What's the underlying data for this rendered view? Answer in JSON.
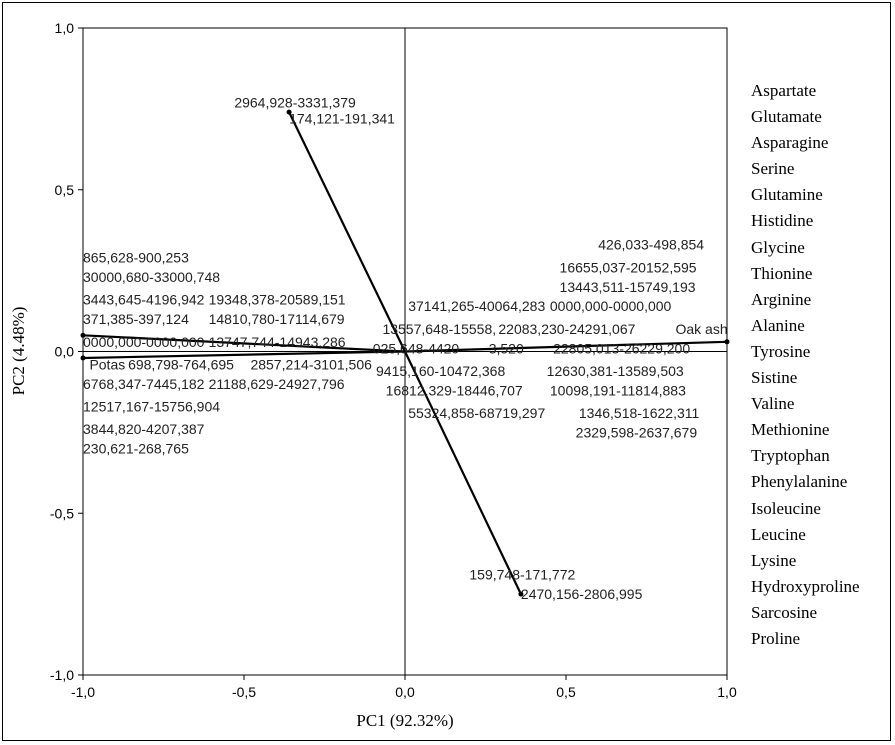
{
  "chart_data": {
    "type": "scatter",
    "xlabel": "PC1 (92.32%)",
    "ylabel": "PC2 (4.48%)",
    "xlim": [
      -1.0,
      1.0
    ],
    "ylim": [
      -1.0,
      1.0
    ],
    "x_ticks": [
      "-1,0",
      "-0,5",
      "0,0",
      "0,5",
      "1,0"
    ],
    "y_ticks": [
      "1,0",
      "0,5",
      "0,0",
      "-0,5",
      "-1,0"
    ],
    "reference_lines": "x = 0 and y = 0",
    "grid": false,
    "legend_position": "right",
    "legend_items": [
      "Aspartate",
      "Glutamate",
      "Asparagine",
      "Serine",
      "Glutamine",
      "Histidine",
      "Glycine",
      "Thionine",
      "Arginine",
      "Alanine",
      "Tyrosine",
      "Sistine",
      "Valine",
      "Methionine",
      "Tryptophan",
      "Phenylalanine",
      "Isoleucine",
      "Leucine",
      "Lysine",
      "Hydroxyproline",
      "Sarcosine",
      "Proline"
    ],
    "vectors": [
      {
        "x": -0.36,
        "y": 0.74
      },
      {
        "x": 0.36,
        "y": -0.75
      },
      {
        "x": 1.0,
        "y": 0.03
      },
      {
        "x": -1.0,
        "y": 0.05
      },
      {
        "x": -1.0,
        "y": -0.02
      }
    ],
    "labels": [
      {
        "text": "2964,928-3331,379",
        "x": -0.53,
        "y": 0.77
      },
      {
        "text": "174,121-191,341",
        "x": -0.36,
        "y": 0.72
      },
      {
        "text": "865,628-900,253",
        "x": -1.0,
        "y": 0.29
      },
      {
        "text": "30000,680-33000,748",
        "x": -1.0,
        "y": 0.23
      },
      {
        "text": "3443,645-4196,942",
        "x": -1.0,
        "y": 0.16
      },
      {
        "text": "19348,378-20589,151",
        "x": -0.61,
        "y": 0.16
      },
      {
        "text": "371,385-397,124",
        "x": -1.0,
        "y": 0.1
      },
      {
        "text": "14810,780-17114,679",
        "x": -0.61,
        "y": 0.1
      },
      {
        "text": "0000,000-0000,000",
        "x": -1.0,
        "y": 0.03
      },
      {
        "text": "13747,744-14943,286",
        "x": -0.61,
        "y": 0.03
      },
      {
        "text": "Potas",
        "x": -0.98,
        "y": -0.04
      },
      {
        "text": "698,798-764,695",
        "x": -0.86,
        "y": -0.04
      },
      {
        "text": "2857,214-3101,506",
        "x": -0.48,
        "y": -0.04
      },
      {
        "text": "6768,347-7445,182",
        "x": -1.0,
        "y": -0.1
      },
      {
        "text": "21188,629-24927,796",
        "x": -0.61,
        "y": -0.1
      },
      {
        "text": "12517,167-15756,904",
        "x": -1.0,
        "y": -0.17
      },
      {
        "text": "3844,820-4207,387",
        "x": -1.0,
        "y": -0.24
      },
      {
        "text": "230,621-268,765",
        "x": -1.0,
        "y": -0.3
      },
      {
        "text": "426,033-498,854",
        "x": 0.6,
        "y": 0.33
      },
      {
        "text": "16655,037-20152,595",
        "x": 0.48,
        "y": 0.26
      },
      {
        "text": "13443,511-15749,193",
        "x": 0.48,
        "y": 0.2
      },
      {
        "text": "37141,265-40064,283",
        "x": 0.01,
        "y": 0.14
      },
      {
        "text": "0000,000-0000,000",
        "x": 0.45,
        "y": 0.14
      },
      {
        "text": "13557,648-15558,",
        "x": -0.07,
        "y": 0.07
      },
      {
        "text": "22083,230-24291,067",
        "x": 0.29,
        "y": 0.07
      },
      {
        "text": "Oak ash",
        "x": 0.84,
        "y": 0.07
      },
      {
        "text": "025,648-4420",
        "x": -0.1,
        "y": 0.01
      },
      {
        "text": "3,520",
        "x": 0.26,
        "y": 0.01
      },
      {
        "text": "22805,013-26229,200",
        "x": 0.46,
        "y": 0.01
      },
      {
        "text": "9415,160-10472,368",
        "x": -0.09,
        "y": -0.06
      },
      {
        "text": "12630,381-13589,503",
        "x": 0.44,
        "y": -0.06
      },
      {
        "text": "16812,329-18446,707",
        "x": -0.06,
        "y": -0.12
      },
      {
        "text": "10098,191-11814,883",
        "x": 0.45,
        "y": -0.12
      },
      {
        "text": "55324,858-68719,297",
        "x": 0.01,
        "y": -0.19
      },
      {
        "text": "1346,518-1622,311",
        "x": 0.54,
        "y": -0.19
      },
      {
        "text": "2329,598-2637,679",
        "x": 0.53,
        "y": -0.25
      },
      {
        "text": "159,748-171,772",
        "x": 0.2,
        "y": -0.69
      },
      {
        "text": "2470,156-2806,995",
        "x": 0.36,
        "y": -0.75
      }
    ]
  }
}
